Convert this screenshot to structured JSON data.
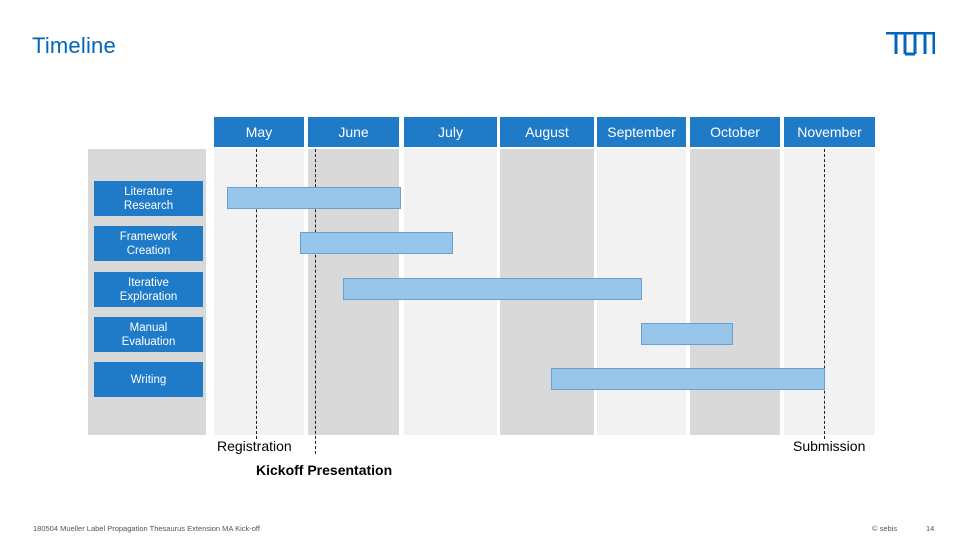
{
  "slide": {
    "title": "Timeline",
    "footer_left": "180504 Mueller Label Propagation Thesaurus Extension MA Kick-off",
    "footer_copyright": "© sebis",
    "page_number": "14"
  },
  "months": [
    "May",
    "June",
    "July",
    "August",
    "September",
    "October",
    "November"
  ],
  "tasks": [
    {
      "label_line1": "Literature",
      "label_line2": "Research",
      "start": "early May",
      "end": "late June"
    },
    {
      "label_line1": "Framework",
      "label_line2": "Creation",
      "start": "late May",
      "end": "July"
    },
    {
      "label_line1": "Iterative",
      "label_line2": "Exploration",
      "start": "June",
      "end": "September"
    },
    {
      "label_line1": "Manual",
      "label_line2": "Evaluation",
      "start": "September",
      "end": "October"
    },
    {
      "label_line1": "Writing",
      "label_line2": "",
      "start": "August",
      "end": "November"
    }
  ],
  "milestones": {
    "registration": "Registration",
    "kickoff": "Kickoff Presentation",
    "submission": "Submission"
  },
  "colors": {
    "header_blue": "#1f7ac8",
    "bar_blue": "#98c6ea",
    "title_blue": "#0065bd",
    "col_light": "#f2f2f2",
    "col_dark": "#d9d9d9"
  }
}
